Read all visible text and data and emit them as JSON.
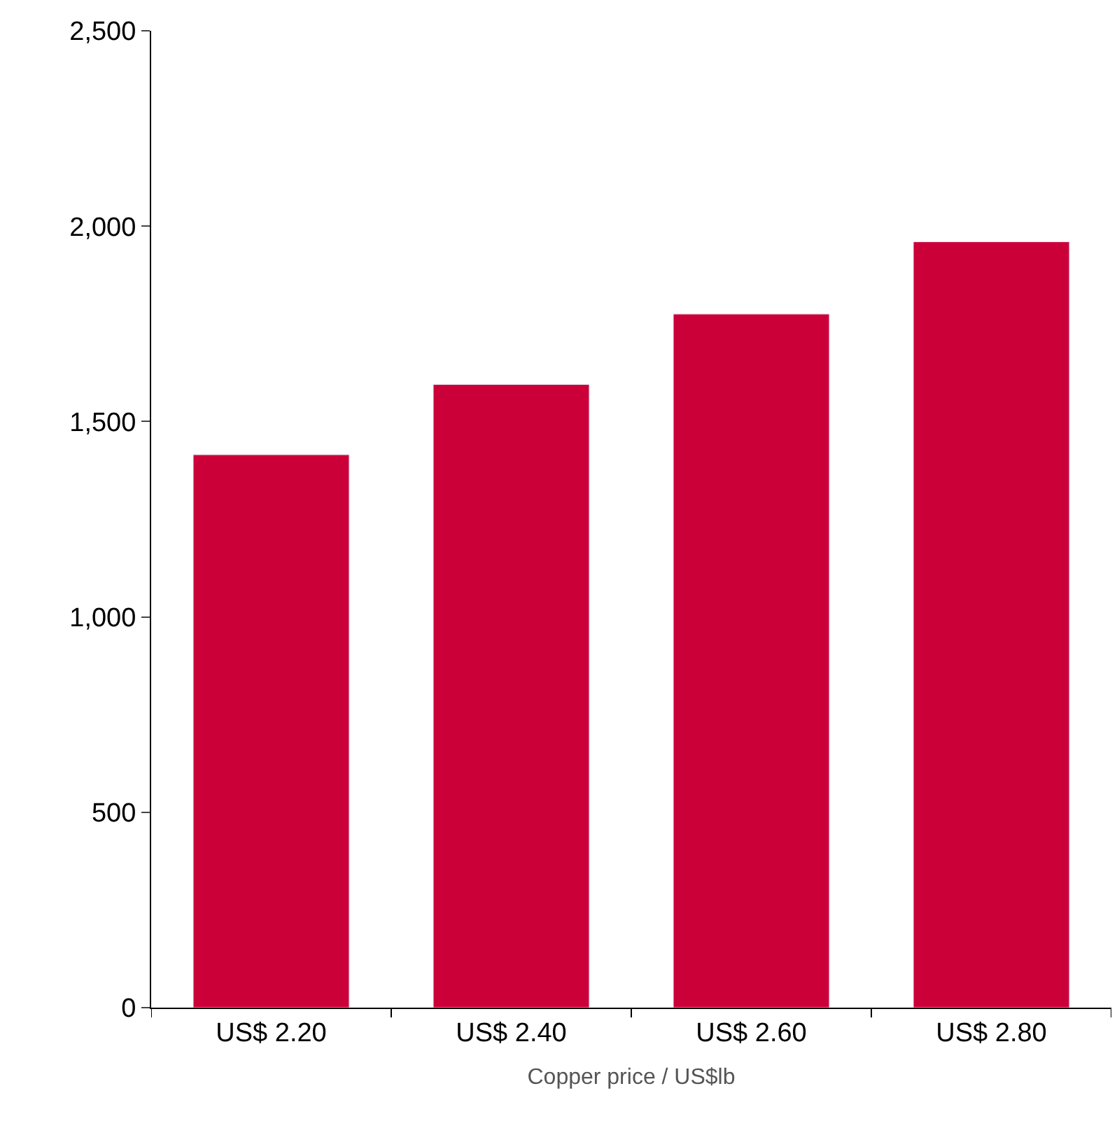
{
  "chart_data": {
    "type": "bar",
    "xlabel": "Copper price / US$lb",
    "categories": [
      "US$ 2.20",
      "US$ 2.40",
      "US$ 2.60",
      "US$ 2.80"
    ],
    "values": [
      1415,
      1595,
      1775,
      1960
    ],
    "color": "#cc0038",
    "ylim": [
      0,
      2500
    ],
    "yticks": [
      {
        "value": 0,
        "label": "0"
      },
      {
        "value": 500,
        "label": "500"
      },
      {
        "value": 1000,
        "label": "1,000"
      },
      {
        "value": 1500,
        "label": "1,500"
      },
      {
        "value": 2000,
        "label": "2,000"
      },
      {
        "value": 2500,
        "label": "2,500"
      }
    ],
    "legend": false
  }
}
